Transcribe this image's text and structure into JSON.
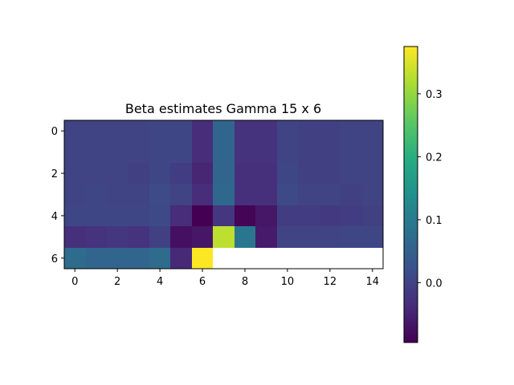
{
  "chart_data": {
    "type": "heatmap",
    "title": "Beta estimates Gamma 15 x 6",
    "colormap": "viridis",
    "x_ticks": [
      "0",
      "2",
      "4",
      "6",
      "8",
      "10",
      "12",
      "14"
    ],
    "y_ticks": [
      "0",
      "2",
      "4",
      "6"
    ],
    "colorbar_ticks": [
      "0.0",
      "0.1",
      "0.2",
      "0.3"
    ],
    "colorbar_tick_values": [
      0.0,
      0.1,
      0.2,
      0.3
    ],
    "vmin": -0.095,
    "vmax": 0.375,
    "n_cols": 15,
    "n_rows": 7,
    "values": [
      [
        0.0,
        0.0,
        0.0,
        0.0,
        0.005,
        0.005,
        -0.035,
        0.06,
        -0.025,
        -0.025,
        0.0,
        -0.005,
        -0.005,
        0.0,
        0.0
      ],
      [
        0.0,
        0.0,
        0.0,
        0.0,
        0.005,
        0.005,
        -0.035,
        0.06,
        -0.025,
        -0.025,
        0.0,
        -0.005,
        -0.005,
        0.0,
        0.0
      ],
      [
        0.0,
        0.0,
        0.0,
        -0.005,
        0.005,
        -0.01,
        -0.045,
        0.06,
        -0.03,
        -0.03,
        0.005,
        -0.005,
        -0.005,
        0.0,
        0.0
      ],
      [
        0.0,
        0.005,
        0.0,
        0.0,
        0.015,
        0.0,
        -0.035,
        0.065,
        -0.03,
        -0.03,
        0.01,
        0.0,
        0.0,
        -0.005,
        0.0
      ],
      [
        0.005,
        0.005,
        0.005,
        0.005,
        0.01,
        -0.035,
        -0.095,
        -0.02,
        -0.09,
        -0.065,
        -0.01,
        -0.01,
        -0.015,
        -0.01,
        -0.005
      ],
      [
        -0.03,
        -0.025,
        -0.02,
        -0.025,
        -0.005,
        -0.075,
        -0.065,
        0.33,
        0.09,
        -0.06,
        0.0,
        0.0,
        0.0,
        0.005,
        0.005
      ],
      [
        0.07,
        0.06,
        0.06,
        0.06,
        0.07,
        -0.04,
        0.375,
        null,
        null,
        null,
        null,
        null,
        null,
        null,
        null
      ]
    ]
  }
}
